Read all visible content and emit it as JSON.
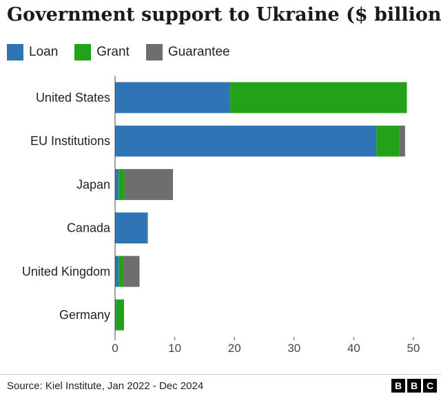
{
  "chart_data": {
    "type": "bar",
    "orientation": "horizontal",
    "stacked": true,
    "title": "Government support to Ukraine ($ billion)",
    "categories": [
      "United States",
      "EU Institutions",
      "Japan",
      "Canada",
      "United Kingdom",
      "Germany"
    ],
    "series": [
      {
        "name": "Loan",
        "color": "#2f74b5",
        "values": [
          19.3,
          43.8,
          0.6,
          5.4,
          0.6,
          0.2
        ]
      },
      {
        "name": "Grant",
        "color": "#22a218",
        "values": [
          29.6,
          3.8,
          1.0,
          0.1,
          0.8,
          1.3
        ]
      },
      {
        "name": "Guarantee",
        "color": "#6e6e6e",
        "values": [
          0.0,
          1.0,
          8.1,
          0.0,
          2.7,
          0.0
        ]
      }
    ],
    "xlim": [
      0,
      50
    ],
    "xticks": [
      "0",
      "10",
      "20",
      "30",
      "40",
      "50"
    ],
    "grid": false,
    "legend": "top-left"
  },
  "footer": {
    "source": "Source: Kiel Institute, Jan 2022 - Dec 2024",
    "logo_letters": [
      "B",
      "B",
      "C"
    ]
  }
}
